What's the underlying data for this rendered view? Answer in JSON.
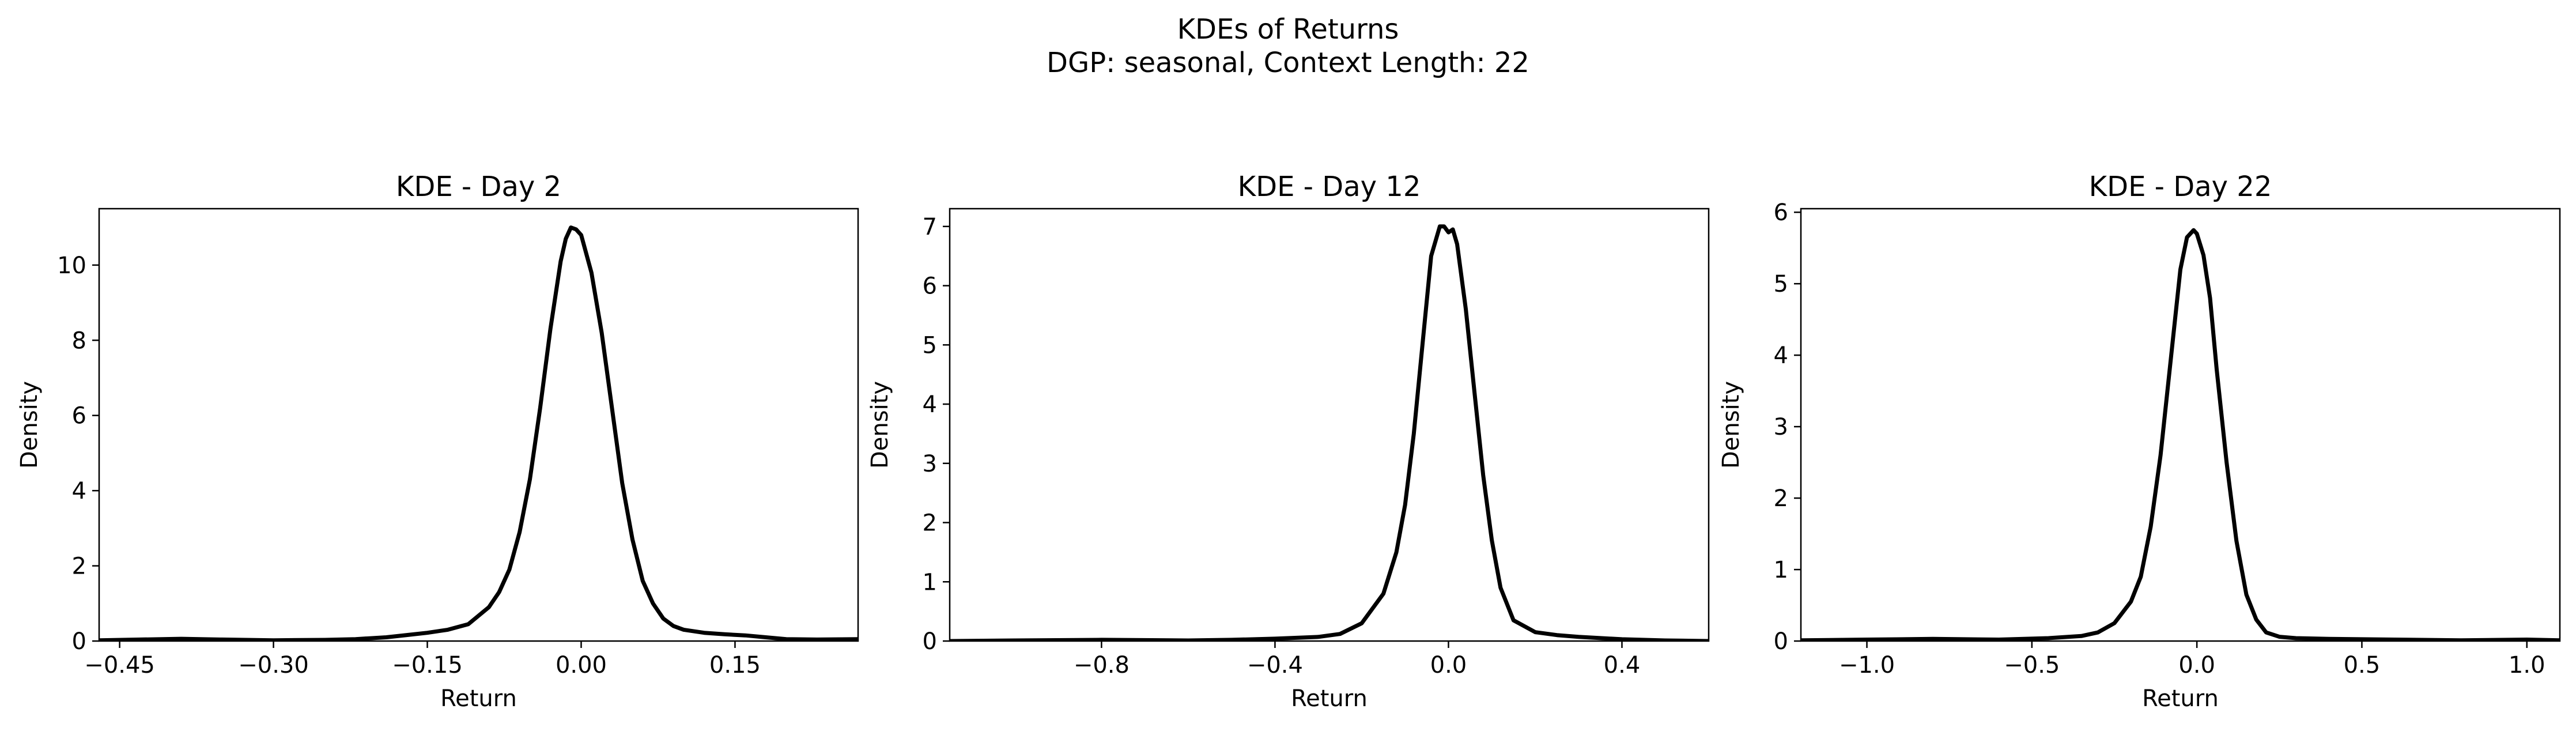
{
  "figure": {
    "suptitle_line1": "KDEs of Returns",
    "suptitle_line2": "DGP: seasonal, Context Length: 22"
  },
  "colors": {
    "line": "#000000",
    "axes": "#000000",
    "background": "#ffffff"
  },
  "chart_data": [
    {
      "type": "line",
      "title": "KDE - Day 2",
      "xlabel": "Return",
      "ylabel": "Density",
      "xlim": [
        -0.47,
        0.27
      ],
      "ylim": [
        0,
        11.5
      ],
      "xticks": [
        -0.45,
        -0.3,
        -0.15,
        0.0,
        0.15
      ],
      "xtick_labels": [
        "−0.45",
        "−0.30",
        "−0.15",
        "0.00",
        "0.15"
      ],
      "yticks": [
        0,
        2,
        4,
        6,
        8,
        10
      ],
      "ytick_labels": [
        "0",
        "2",
        "4",
        "6",
        "8",
        "10"
      ],
      "series": [
        {
          "x": [
            -0.47,
            -0.43,
            -0.39,
            -0.35,
            -0.3,
            -0.25,
            -0.22,
            -0.19,
            -0.17,
            -0.15,
            -0.13,
            -0.11,
            -0.09,
            -0.08,
            -0.07,
            -0.06,
            -0.05,
            -0.04,
            -0.03,
            -0.02,
            -0.015,
            -0.01,
            -0.005,
            0.0,
            0.01,
            0.02,
            0.03,
            0.04,
            0.05,
            0.06,
            0.07,
            0.08,
            0.09,
            0.1,
            0.12,
            0.14,
            0.16,
            0.18,
            0.2,
            0.23,
            0.27
          ],
          "y": [
            0.02,
            0.04,
            0.06,
            0.04,
            0.02,
            0.03,
            0.05,
            0.1,
            0.16,
            0.22,
            0.3,
            0.45,
            0.9,
            1.3,
            1.9,
            2.9,
            4.3,
            6.2,
            8.3,
            10.1,
            10.7,
            11.0,
            10.95,
            10.8,
            9.8,
            8.2,
            6.2,
            4.2,
            2.7,
            1.6,
            1.0,
            0.6,
            0.4,
            0.3,
            0.22,
            0.18,
            0.15,
            0.1,
            0.05,
            0.04,
            0.05
          ]
        }
      ]
    },
    {
      "type": "line",
      "title": "KDE - Day 12",
      "xlabel": "Return",
      "ylabel": "Density",
      "xlim": [
        -1.15,
        0.6
      ],
      "ylim": [
        0,
        7.3
      ],
      "xticks": [
        -0.8,
        -0.4,
        0.0,
        0.4
      ],
      "xtick_labels": [
        "−0.8",
        "−0.4",
        "0.0",
        "0.4"
      ],
      "yticks": [
        0,
        1,
        2,
        3,
        4,
        5,
        6,
        7
      ],
      "ytick_labels": [
        "0",
        "1",
        "2",
        "3",
        "4",
        "5",
        "6",
        "7"
      ],
      "series": [
        {
          "x": [
            -1.15,
            -1.0,
            -0.8,
            -0.6,
            -0.5,
            -0.4,
            -0.3,
            -0.25,
            -0.2,
            -0.15,
            -0.12,
            -0.1,
            -0.08,
            -0.06,
            -0.04,
            -0.02,
            -0.01,
            0.0,
            0.01,
            0.02,
            0.04,
            0.06,
            0.08,
            0.1,
            0.12,
            0.15,
            0.2,
            0.25,
            0.3,
            0.4,
            0.5,
            0.6
          ],
          "y": [
            0.0,
            0.01,
            0.02,
            0.01,
            0.02,
            0.04,
            0.07,
            0.12,
            0.3,
            0.8,
            1.5,
            2.3,
            3.5,
            5.0,
            6.5,
            7.0,
            7.0,
            6.9,
            6.95,
            6.7,
            5.6,
            4.2,
            2.8,
            1.7,
            0.9,
            0.35,
            0.15,
            0.1,
            0.07,
            0.03,
            0.01,
            0.0
          ]
        }
      ]
    },
    {
      "type": "line",
      "title": "KDE - Day 22",
      "xlabel": "Return",
      "ylabel": "Density",
      "xlim": [
        -1.2,
        1.1
      ],
      "ylim": [
        0,
        6.05
      ],
      "xticks": [
        -1.0,
        -0.5,
        0.0,
        0.5,
        1.0
      ],
      "xtick_labels": [
        "−1.0",
        "−0.5",
        "0.0",
        "0.5",
        "1.0"
      ],
      "yticks": [
        0,
        1,
        2,
        3,
        4,
        5,
        6
      ],
      "ytick_labels": [
        "0",
        "1",
        "2",
        "3",
        "4",
        "5",
        "6"
      ],
      "series": [
        {
          "x": [
            -1.2,
            -1.0,
            -0.8,
            -0.6,
            -0.45,
            -0.35,
            -0.3,
            -0.25,
            -0.2,
            -0.17,
            -0.14,
            -0.11,
            -0.08,
            -0.05,
            -0.03,
            -0.01,
            0.0,
            0.02,
            0.04,
            0.06,
            0.09,
            0.12,
            0.15,
            0.18,
            0.21,
            0.25,
            0.3,
            0.4,
            0.6,
            0.8,
            1.0,
            1.1
          ],
          "y": [
            0.01,
            0.02,
            0.03,
            0.02,
            0.04,
            0.07,
            0.12,
            0.25,
            0.55,
            0.9,
            1.6,
            2.6,
            3.9,
            5.2,
            5.65,
            5.75,
            5.7,
            5.4,
            4.8,
            3.8,
            2.5,
            1.4,
            0.65,
            0.3,
            0.12,
            0.06,
            0.04,
            0.03,
            0.02,
            0.01,
            0.02,
            0.01
          ]
        }
      ]
    }
  ]
}
